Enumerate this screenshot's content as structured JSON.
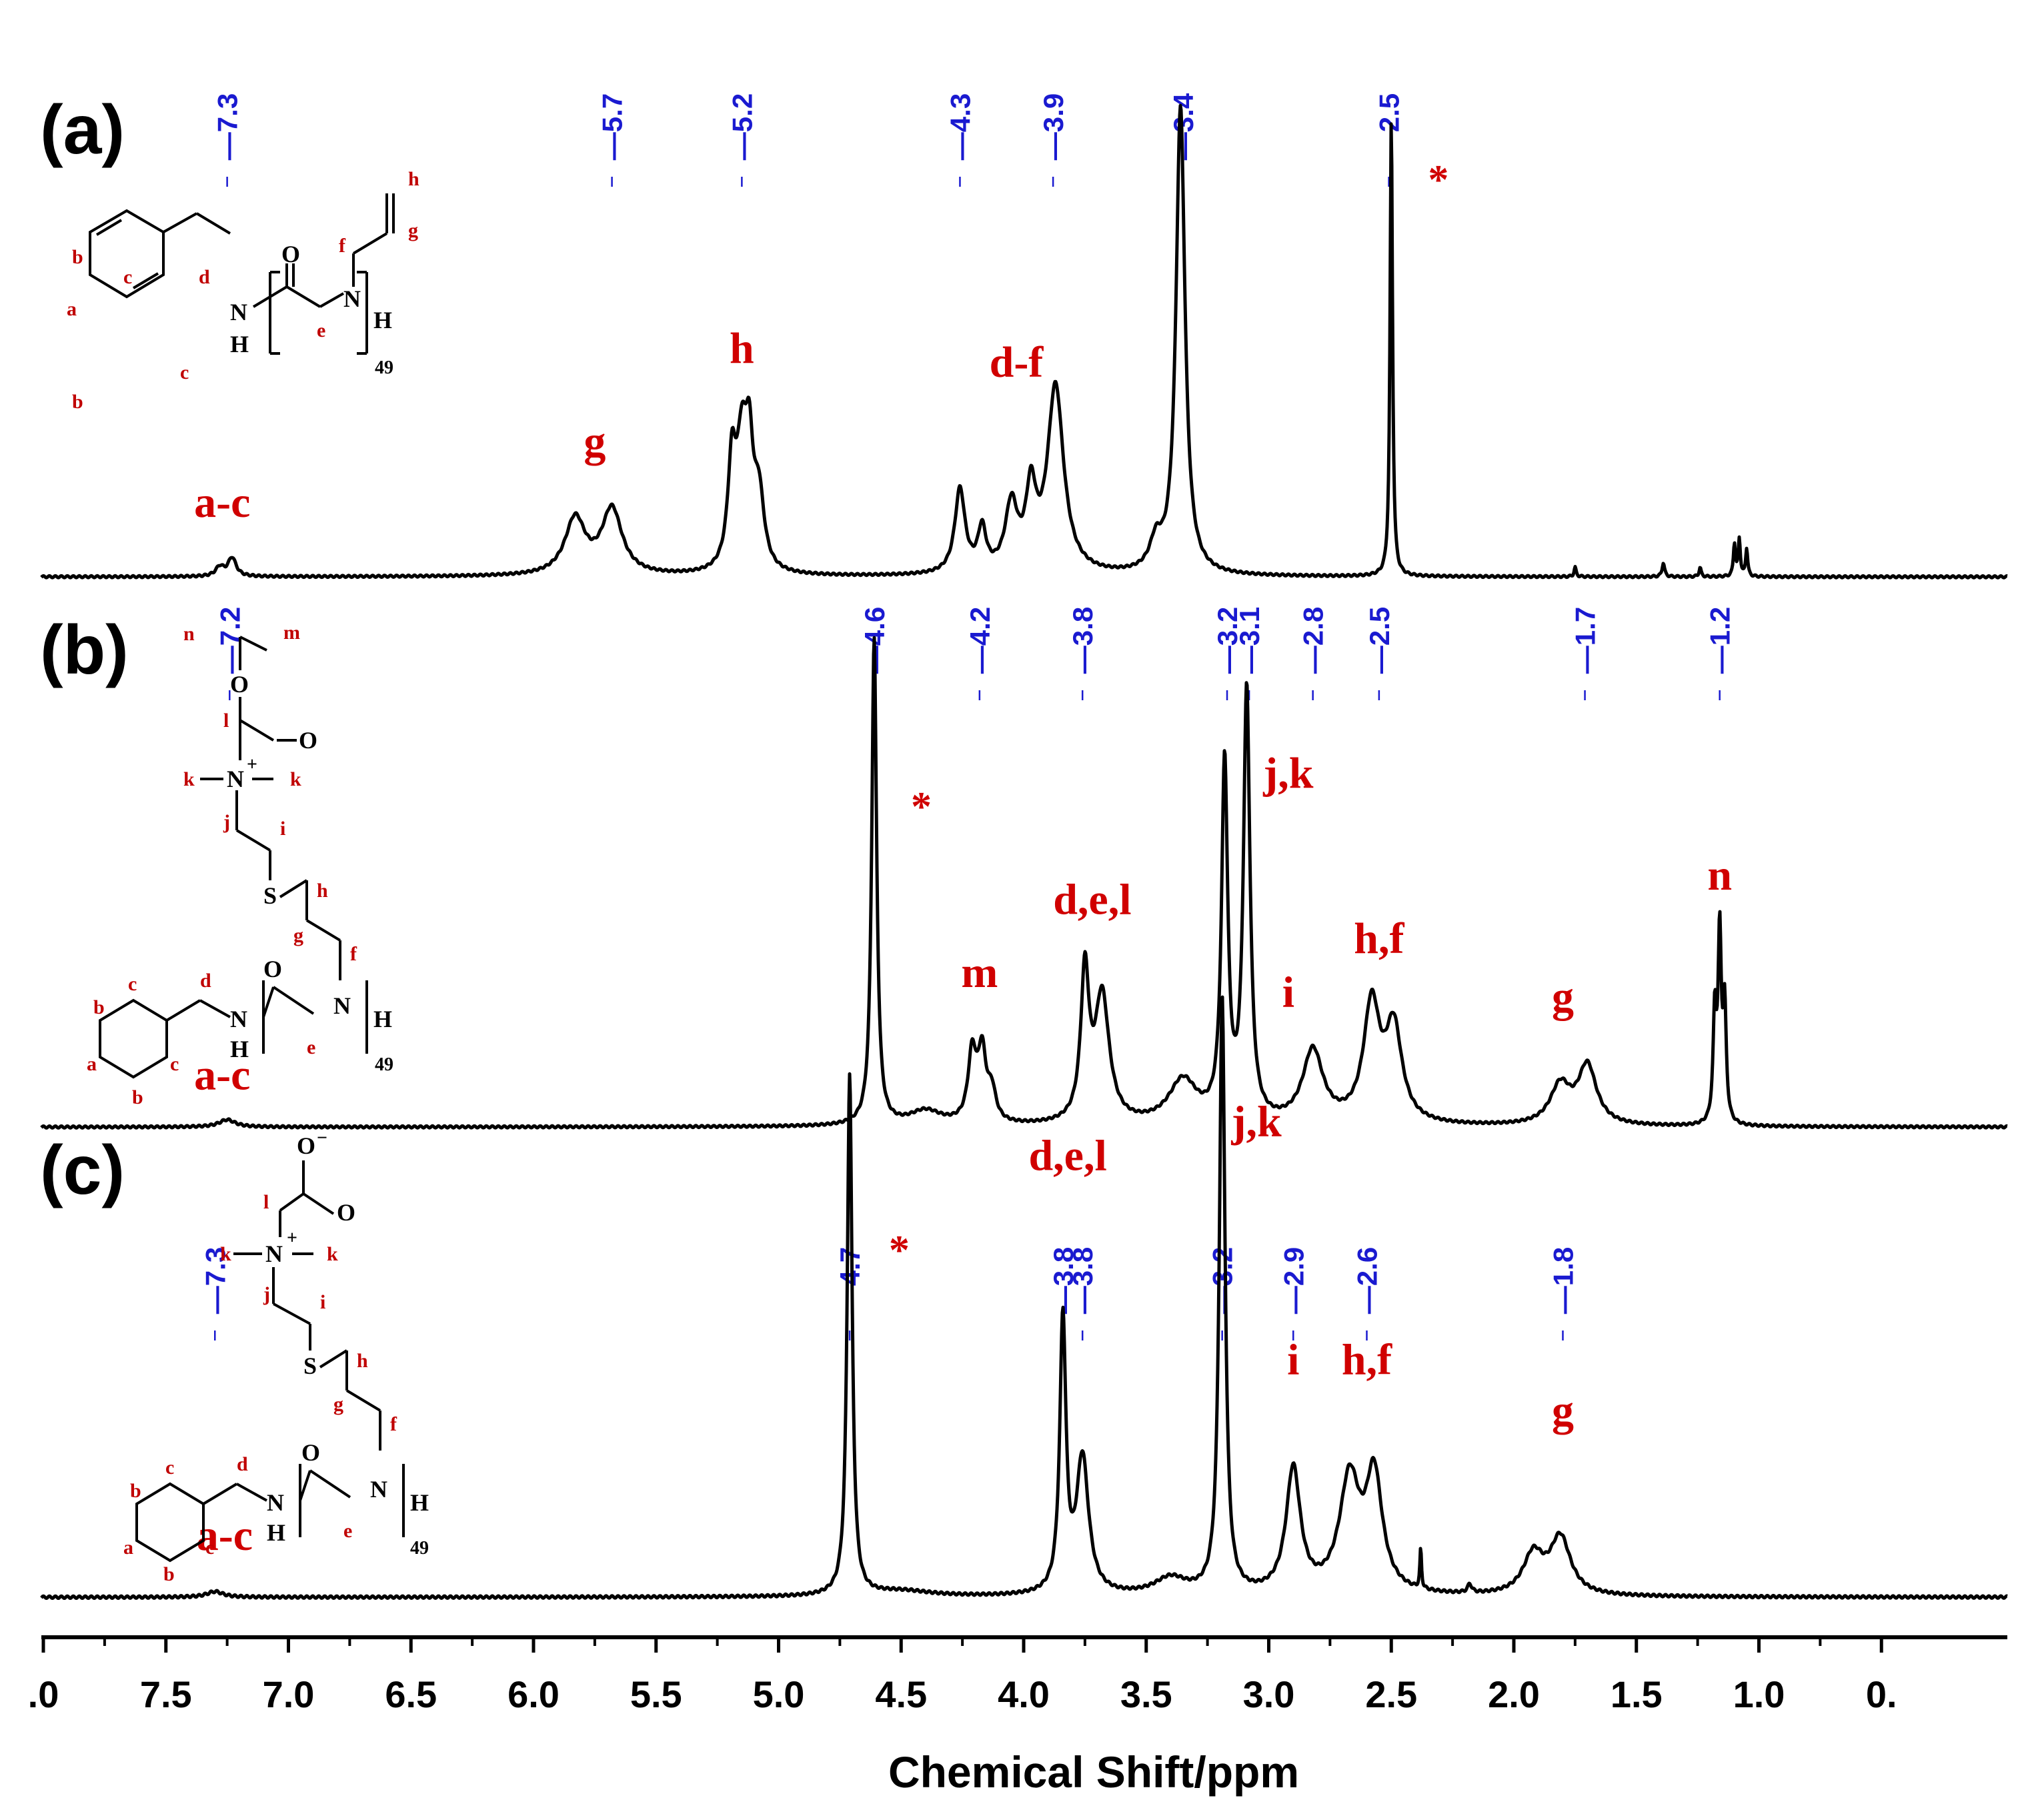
{
  "chart_data": [
    {
      "panel": "(a)",
      "type": "line",
      "xlim": [
        8.0,
        0.0
      ],
      "x_reversed": true,
      "shift_labels": [
        "7.3",
        "5.7",
        "5.2",
        "4.3",
        "3.9",
        "3.4",
        "2.5"
      ],
      "shift_positions": [
        7.25,
        5.68,
        5.15,
        4.26,
        3.88,
        3.35,
        2.51
      ],
      "peaks": [
        {
          "ppm": 7.28,
          "height": 0.02,
          "width": 0.02
        },
        {
          "ppm": 7.23,
          "height": 0.04,
          "width": 0.02
        },
        {
          "ppm": 5.83,
          "height": 0.12,
          "width": 0.05
        },
        {
          "ppm": 5.68,
          "height": 0.14,
          "width": 0.05
        },
        {
          "ppm": 5.19,
          "height": 0.22,
          "width": 0.02
        },
        {
          "ppm": 5.15,
          "height": 0.24,
          "width": 0.025
        },
        {
          "ppm": 5.12,
          "height": 0.22,
          "width": 0.02
        },
        {
          "ppm": 5.08,
          "height": 0.15,
          "width": 0.025
        },
        {
          "ppm": 4.26,
          "height": 0.18,
          "width": 0.025
        },
        {
          "ppm": 4.17,
          "height": 0.09,
          "width": 0.02
        },
        {
          "ppm": 4.05,
          "height": 0.14,
          "width": 0.03
        },
        {
          "ppm": 3.97,
          "height": 0.16,
          "width": 0.025
        },
        {
          "ppm": 3.87,
          "height": 0.4,
          "width": 0.04
        },
        {
          "ppm": 3.46,
          "height": 0.06,
          "width": 0.03
        },
        {
          "ppm": 3.36,
          "height": 1.0,
          "width": 0.022
        },
        {
          "ppm": 2.5,
          "height": 0.98,
          "width": 0.006
        },
        {
          "ppm": 1.75,
          "height": 0.02,
          "width": 0.005
        },
        {
          "ppm": 1.39,
          "height": 0.03,
          "width": 0.006
        },
        {
          "ppm": 1.24,
          "height": 0.02,
          "width": 0.005
        },
        {
          "ppm": 1.1,
          "height": 0.07,
          "width": 0.005
        },
        {
          "ppm": 1.08,
          "height": 0.08,
          "width": 0.005
        },
        {
          "ppm": 1.05,
          "height": 0.06,
          "width": 0.005
        }
      ],
      "assignments": [
        {
          "text": "a-c",
          "ppm": 7.27,
          "rel": 0.1
        },
        {
          "text": "g",
          "ppm": 5.75,
          "rel": 0.23
        },
        {
          "text": "h",
          "ppm": 5.15,
          "rel": 0.43
        },
        {
          "text": "d-f",
          "ppm": 4.03,
          "rel": 0.4
        }
      ],
      "solvent_ppm": 2.35,
      "structure_labels": {
        "repeat": "49"
      }
    },
    {
      "panel": "(b)",
      "type": "line",
      "xlim": [
        8.0,
        0.0
      ],
      "x_reversed": true,
      "shift_labels": [
        "7.2",
        "4.6",
        "4.2",
        "3.8",
        "3.2",
        "3.1",
        "2.8",
        "2.5",
        "1.7",
        "1.2"
      ],
      "shift_positions": [
        7.24,
        4.61,
        4.18,
        3.76,
        3.17,
        3.08,
        2.82,
        2.55,
        1.71,
        1.16
      ],
      "peaks": [
        {
          "ppm": 7.25,
          "height": 0.015,
          "width": 0.04
        },
        {
          "ppm": 4.61,
          "height": 1.0,
          "width": 0.012
        },
        {
          "ppm": 4.4,
          "height": 0.03,
          "width": 0.08
        },
        {
          "ppm": 4.21,
          "height": 0.14,
          "width": 0.02
        },
        {
          "ppm": 4.17,
          "height": 0.14,
          "width": 0.02
        },
        {
          "ppm": 4.13,
          "height": 0.06,
          "width": 0.02
        },
        {
          "ppm": 3.75,
          "height": 0.3,
          "width": 0.02
        },
        {
          "ppm": 3.68,
          "height": 0.26,
          "width": 0.035
        },
        {
          "ppm": 3.35,
          "height": 0.09,
          "width": 0.07
        },
        {
          "ppm": 3.18,
          "height": 0.73,
          "width": 0.015
        },
        {
          "ppm": 3.09,
          "height": 0.88,
          "width": 0.016
        },
        {
          "ppm": 2.82,
          "height": 0.15,
          "width": 0.05
        },
        {
          "ppm": 2.58,
          "height": 0.24,
          "width": 0.04
        },
        {
          "ppm": 2.49,
          "height": 0.19,
          "width": 0.04
        },
        {
          "ppm": 1.81,
          "height": 0.08,
          "width": 0.05
        },
        {
          "ppm": 1.7,
          "height": 0.12,
          "width": 0.045
        },
        {
          "ppm": 1.18,
          "height": 0.22,
          "width": 0.008
        },
        {
          "ppm": 1.16,
          "height": 0.38,
          "width": 0.008
        },
        {
          "ppm": 1.14,
          "height": 0.23,
          "width": 0.008
        }
      ],
      "assignments": [
        {
          "text": "a-c",
          "ppm": 7.27,
          "rel": 0.05
        },
        {
          "text": "m",
          "ppm": 4.18,
          "rel": 0.26
        },
        {
          "text": "d,e,l",
          "ppm": 3.72,
          "rel": 0.41
        },
        {
          "text": "j,k",
          "ppm": 2.92,
          "rel": 0.67
        },
        {
          "text": "i",
          "ppm": 2.92,
          "rel": 0.22
        },
        {
          "text": "h,f",
          "ppm": 2.55,
          "rel": 0.33
        },
        {
          "text": "g",
          "ppm": 1.8,
          "rel": 0.21
        },
        {
          "text": "n",
          "ppm": 1.16,
          "rel": 0.46
        }
      ],
      "solvent_ppm": 4.46,
      "structure_labels": {
        "repeat": "49"
      }
    },
    {
      "panel": "(c)",
      "type": "line",
      "xlim": [
        8.0,
        0.0
      ],
      "x_reversed": true,
      "shift_labels": [
        "7.3",
        "4.7",
        "3.8",
        "3.8",
        "3.2",
        "2.9",
        "2.6",
        "1.8"
      ],
      "shift_positions": [
        7.3,
        4.71,
        3.84,
        3.76,
        3.19,
        2.9,
        2.6,
        1.8
      ],
      "peaks": [
        {
          "ppm": 7.3,
          "height": 0.01,
          "width": 0.04
        },
        {
          "ppm": 4.71,
          "height": 0.92,
          "width": 0.012
        },
        {
          "ppm": 4.5,
          "height": 0.01,
          "width": 0.15
        },
        {
          "ppm": 3.84,
          "height": 0.48,
          "width": 0.015
        },
        {
          "ppm": 3.76,
          "height": 0.24,
          "width": 0.03
        },
        {
          "ppm": 3.4,
          "height": 0.03,
          "width": 0.08
        },
        {
          "ppm": 3.19,
          "height": 1.05,
          "width": 0.014
        },
        {
          "ppm": 2.9,
          "height": 0.22,
          "width": 0.035
        },
        {
          "ppm": 2.67,
          "height": 0.2,
          "width": 0.05
        },
        {
          "ppm": 2.57,
          "height": 0.2,
          "width": 0.04
        },
        {
          "ppm": 2.38,
          "height": 0.07,
          "width": 0.004
        },
        {
          "ppm": 2.18,
          "height": 0.015,
          "width": 0.01
        },
        {
          "ppm": 1.92,
          "height": 0.07,
          "width": 0.05
        },
        {
          "ppm": 1.81,
          "height": 0.1,
          "width": 0.05
        }
      ],
      "assignments": [
        {
          "text": "a-c",
          "ppm": 7.26,
          "rel": 0.06
        },
        {
          "text": "d,e,l",
          "ppm": 3.82,
          "rel": 0.73
        },
        {
          "text": "j,k",
          "ppm": 3.05,
          "rel": 0.79
        },
        {
          "text": "i",
          "ppm": 2.9,
          "rel": 0.37
        },
        {
          "text": "h,f",
          "ppm": 2.6,
          "rel": 0.37
        },
        {
          "text": "g",
          "ppm": 1.8,
          "rel": 0.28
        }
      ],
      "solvent_ppm": 4.55,
      "structure_labels": {
        "repeat": "49"
      }
    }
  ],
  "x_axis": {
    "label": "Chemical Shift/ppm",
    "ticks": [
      ".0",
      "7.5",
      "7.0",
      "6.5",
      "6.0",
      "5.5",
      "5.0",
      "4.5",
      "4.0",
      "3.5",
      "3.0",
      "2.5",
      "2.0",
      "1.5",
      "1.0",
      "0."
    ],
    "tick_values": [
      8.0,
      7.5,
      7.0,
      6.5,
      6.0,
      5.5,
      5.0,
      4.5,
      4.0,
      3.5,
      3.0,
      2.5,
      2.0,
      1.5,
      1.0,
      0.5
    ]
  },
  "solvent_marker": "*",
  "colors": {
    "shift_labels": "#1a1ad0",
    "assignments": "#d00000",
    "spectrum": "#000000"
  }
}
